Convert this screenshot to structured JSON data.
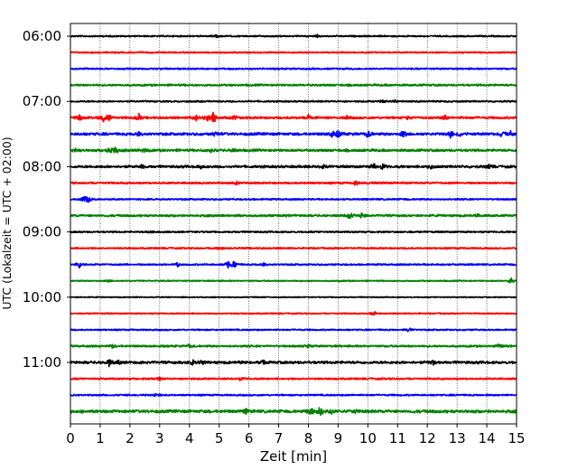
{
  "chart_data": {
    "type": "line",
    "chart_kind": "helicorder (seismogram drum plot)",
    "xlabel": "Zeit  [min]",
    "ylabel": "UTC (Lokalzeit = UTC + 02:00)",
    "xlim": [
      0,
      15
    ],
    "x_ticks": [
      0,
      1,
      2,
      3,
      4,
      5,
      6,
      7,
      8,
      9,
      10,
      11,
      12,
      13,
      14,
      15
    ],
    "x_tick_labels": [
      "0",
      "1",
      "2",
      "3",
      "4",
      "5",
      "6",
      "7",
      "8",
      "9",
      "10",
      "11",
      "12",
      "13",
      "14",
      "15"
    ],
    "y_tick_labels": [
      "06:00",
      "07:00",
      "08:00",
      "09:00",
      "10:00",
      "11:00"
    ],
    "grid": "vertical dotted lines at each minute",
    "trace_interval_min": 15,
    "trace_colors": [
      "#000000",
      "#ff0000",
      "#0000ff",
      "#008000"
    ],
    "series": [
      {
        "start": "06:00",
        "color": "#000000",
        "noise": 0.9,
        "events": [
          [
            4.9,
            1.4
          ],
          [
            8.3,
            1.6
          ]
        ]
      },
      {
        "start": "06:15",
        "color": "#ff0000",
        "noise": 0.9,
        "events": []
      },
      {
        "start": "06:30",
        "color": "#0000ff",
        "noise": 1.0,
        "events": []
      },
      {
        "start": "06:45",
        "color": "#008000",
        "noise": 1.2,
        "events": []
      },
      {
        "start": "07:00",
        "color": "#000000",
        "noise": 1.0,
        "events": [
          [
            10.5,
            1.6
          ],
          [
            10.9,
            1.4
          ]
        ]
      },
      {
        "start": "07:15",
        "color": "#ff0000",
        "noise": 1.4,
        "events": [
          [
            0.3,
            3.5
          ],
          [
            1.1,
            5.5
          ],
          [
            1.3,
            4.5
          ],
          [
            2.3,
            4.5
          ],
          [
            4.2,
            4.5
          ],
          [
            4.6,
            4.0
          ],
          [
            4.8,
            7.5
          ],
          [
            5.5,
            2.8
          ],
          [
            8.0,
            2.5
          ],
          [
            9.3,
            2.0
          ],
          [
            11.3,
            2.2
          ],
          [
            12.6,
            3.5
          ]
        ]
      },
      {
        "start": "07:30",
        "color": "#0000ff",
        "noise": 1.6,
        "events": [
          [
            2.3,
            2.5
          ],
          [
            4.9,
            2.5
          ],
          [
            8.8,
            3.5
          ],
          [
            9.0,
            4.5
          ],
          [
            10.0,
            4.0
          ],
          [
            11.2,
            4.0
          ],
          [
            12.8,
            6.0
          ],
          [
            13.1,
            2.6
          ],
          [
            14.5,
            3.0
          ],
          [
            14.8,
            2.5
          ]
        ]
      },
      {
        "start": "07:45",
        "color": "#008000",
        "noise": 1.5,
        "events": [
          [
            0.2,
            2.5
          ],
          [
            1.3,
            3.5
          ],
          [
            1.5,
            5.5
          ],
          [
            2.5,
            2.5
          ],
          [
            4.7,
            2.5
          ],
          [
            5.5,
            2.0
          ]
        ]
      },
      {
        "start": "08:00",
        "color": "#000000",
        "noise": 1.5,
        "events": [
          [
            2.4,
            2.5
          ],
          [
            4.4,
            2.5
          ],
          [
            8.5,
            4.0
          ],
          [
            10.2,
            4.0
          ],
          [
            10.5,
            3.5
          ],
          [
            12.1,
            2.5
          ],
          [
            14.1,
            2.5
          ]
        ]
      },
      {
        "start": "08:15",
        "color": "#ff0000",
        "noise": 1.2,
        "events": [
          [
            5.6,
            2.0
          ],
          [
            9.6,
            3.0
          ]
        ]
      },
      {
        "start": "08:30",
        "color": "#0000ff",
        "noise": 1.0,
        "events": [
          [
            0.6,
            4.5
          ],
          [
            0.45,
            3.0
          ]
        ]
      },
      {
        "start": "08:45",
        "color": "#008000",
        "noise": 1.3,
        "events": [
          [
            9.4,
            3.5
          ],
          [
            9.8,
            3.5
          ],
          [
            13.7,
            2.0
          ]
        ]
      },
      {
        "start": "09:00",
        "color": "#000000",
        "noise": 1.0,
        "events": [
          [
            2.7,
            1.8
          ]
        ]
      },
      {
        "start": "09:15",
        "color": "#ff0000",
        "noise": 1.0,
        "events": [
          [
            5.0,
            1.6
          ]
        ]
      },
      {
        "start": "09:30",
        "color": "#0000ff",
        "noise": 1.0,
        "events": [
          [
            0.3,
            4.0
          ],
          [
            3.6,
            2.5
          ],
          [
            5.3,
            5.5
          ],
          [
            5.5,
            3.5
          ],
          [
            6.5,
            2.0
          ]
        ]
      },
      {
        "start": "09:45",
        "color": "#008000",
        "noise": 0.8,
        "events": [
          [
            1.3,
            1.6
          ],
          [
            14.8,
            4.0
          ]
        ]
      },
      {
        "start": "10:00",
        "color": "#000000",
        "noise": 0.6,
        "events": []
      },
      {
        "start": "10:15",
        "color": "#ff0000",
        "noise": 0.8,
        "events": [
          [
            10.2,
            3.5
          ]
        ]
      },
      {
        "start": "10:30",
        "color": "#0000ff",
        "noise": 0.9,
        "events": [
          [
            11.4,
            3.5
          ]
        ]
      },
      {
        "start": "10:45",
        "color": "#008000",
        "noise": 1.2,
        "events": [
          [
            1.4,
            2.2
          ],
          [
            4.0,
            2.0
          ],
          [
            8.0,
            2.0
          ],
          [
            14.4,
            2.0
          ]
        ]
      },
      {
        "start": "11:00",
        "color": "#000000",
        "noise": 1.6,
        "events": [
          [
            1.3,
            3.5
          ],
          [
            1.6,
            2.5
          ],
          [
            4.1,
            3.0
          ],
          [
            4.4,
            2.5
          ],
          [
            6.5,
            2.5
          ],
          [
            12.2,
            2.0
          ]
        ]
      },
      {
        "start": "11:15",
        "color": "#ff0000",
        "noise": 1.1,
        "events": [
          [
            3.0,
            2.0
          ],
          [
            5.7,
            2.0
          ]
        ]
      },
      {
        "start": "11:30",
        "color": "#0000ff",
        "noise": 1.0,
        "events": [
          [
            2.9,
            2.0
          ]
        ]
      },
      {
        "start": "11:45",
        "color": "#008000",
        "noise": 1.8,
        "events": [
          [
            5.9,
            2.8
          ],
          [
            8.1,
            4.5
          ],
          [
            8.4,
            6.0
          ],
          [
            8.8,
            3.5
          ],
          [
            9.6,
            2.0
          ]
        ]
      }
    ]
  }
}
